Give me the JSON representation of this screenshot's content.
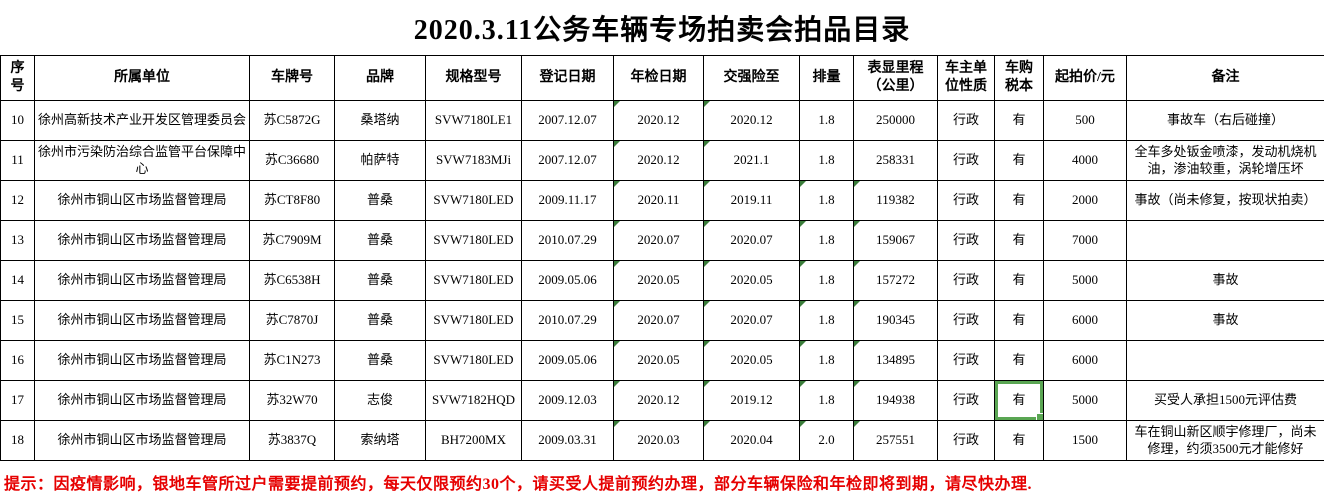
{
  "title": "2020.3.11公务车辆专场拍卖会拍品目录",
  "table": {
    "headers": {
      "no": "序号",
      "unit": "所属单位",
      "plate": "车牌号",
      "brand": "品牌",
      "model": "规格型号",
      "reg_date": "登记日期",
      "inspection": "年检日期",
      "insurance": "交强险至",
      "displacement": "排量",
      "mileage": "表显里程\n（公里）",
      "owner_type": "车主单\n位性质",
      "tax_book": "车购\n税本",
      "start_price": "起拍价/元",
      "remark": "备注"
    },
    "rows": [
      {
        "no": "10",
        "unit": "徐州高新技术产业开发区管理委员会",
        "plate": "苏C5872G",
        "brand": "桑塔纳",
        "model": "SVW7180LE1",
        "reg_date": "2007.12.07",
        "inspection": "2020.12",
        "insurance": "2020.12",
        "displacement": "1.8",
        "mileage": "250000",
        "owner_type": "行政",
        "tax_book": "有",
        "start_price": "500",
        "remark": "事故车（右后碰撞）",
        "flags": [
          "inspection",
          "insurance"
        ]
      },
      {
        "no": "11",
        "unit": "徐州市污染防治综合监管平台保障中心",
        "plate": "苏C36680",
        "brand": "帕萨特",
        "model": "SVW7183MJi",
        "reg_date": "2007.12.07",
        "inspection": "2020.12",
        "insurance": "2021.1",
        "displacement": "1.8",
        "mileage": "258331",
        "owner_type": "行政",
        "tax_book": "有",
        "start_price": "4000",
        "remark": "全车多处钣金喷漆，发动机烧机油，渗油较重，涡轮增压坏",
        "flags": [
          "inspection",
          "insurance"
        ]
      },
      {
        "no": "12",
        "unit": "徐州市铜山区市场监督管理局",
        "plate": "苏CT8F80",
        "brand": "普桑",
        "model": "SVW7180LED",
        "reg_date": "2009.11.17",
        "inspection": "2020.11",
        "insurance": "2019.11",
        "displacement": "1.8",
        "mileage": "119382",
        "owner_type": "行政",
        "tax_book": "有",
        "start_price": "2000",
        "remark": "事故（尚未修复，按现状拍卖）",
        "flags": [
          "inspection",
          "insurance",
          "displacement",
          "mileage"
        ]
      },
      {
        "no": "13",
        "unit": "徐州市铜山区市场监督管理局",
        "plate": "苏C7909M",
        "brand": "普桑",
        "model": "SVW7180LED",
        "reg_date": "2010.07.29",
        "inspection": "2020.07",
        "insurance": "2020.07",
        "displacement": "1.8",
        "mileage": "159067",
        "owner_type": "行政",
        "tax_book": "有",
        "start_price": "7000",
        "remark": "",
        "flags": [
          "inspection",
          "insurance",
          "displacement",
          "mileage"
        ]
      },
      {
        "no": "14",
        "unit": "徐州市铜山区市场监督管理局",
        "plate": "苏C6538H",
        "brand": "普桑",
        "model": "SVW7180LED",
        "reg_date": "2009.05.06",
        "inspection": "2020.05",
        "insurance": "2020.05",
        "displacement": "1.8",
        "mileage": "157272",
        "owner_type": "行政",
        "tax_book": "有",
        "start_price": "5000",
        "remark": "事故",
        "flags": [
          "inspection",
          "insurance",
          "displacement",
          "mileage"
        ]
      },
      {
        "no": "15",
        "unit": "徐州市铜山区市场监督管理局",
        "plate": "苏C7870J",
        "brand": "普桑",
        "model": "SVW7180LED",
        "reg_date": "2010.07.29",
        "inspection": "2020.07",
        "insurance": "2020.07",
        "displacement": "1.8",
        "mileage": "190345",
        "owner_type": "行政",
        "tax_book": "有",
        "start_price": "6000",
        "remark": "事故",
        "flags": [
          "inspection",
          "insurance",
          "displacement",
          "mileage"
        ]
      },
      {
        "no": "16",
        "unit": "徐州市铜山区市场监督管理局",
        "plate": "苏C1N273",
        "brand": "普桑",
        "model": "SVW7180LED",
        "reg_date": "2009.05.06",
        "inspection": "2020.05",
        "insurance": "2020.05",
        "displacement": "1.8",
        "mileage": "134895",
        "owner_type": "行政",
        "tax_book": "有",
        "start_price": "6000",
        "remark": "",
        "flags": [
          "inspection",
          "insurance",
          "displacement",
          "mileage"
        ]
      },
      {
        "no": "17",
        "unit": "徐州市铜山区市场监督管理局",
        "plate": "苏32W70",
        "brand": "志俊",
        "model": "SVW7182HQD",
        "reg_date": "2009.12.03",
        "inspection": "2020.12",
        "insurance": "2019.12",
        "displacement": "1.8",
        "mileage": "194938",
        "owner_type": "行政",
        "tax_book": "有",
        "start_price": "5000",
        "remark": "买受人承担1500元评估费",
        "flags": [
          "inspection",
          "insurance",
          "displacement",
          "mileage"
        ],
        "selected": "tax_book"
      },
      {
        "no": "18",
        "unit": "徐州市铜山区市场监督管理局",
        "plate": "苏3837Q",
        "brand": "索纳塔",
        "model": "BH7200MX",
        "reg_date": "2009.03.31",
        "inspection": "2020.03",
        "insurance": "2020.04",
        "displacement": "2.0",
        "mileage": "257551",
        "owner_type": "行政",
        "tax_book": "有",
        "start_price": "1500",
        "remark": "车在铜山新区顺宇修理厂，尚未修理，约须3500元才能修好",
        "flags": [
          "inspection",
          "insurance",
          "displacement",
          "mileage"
        ]
      }
    ]
  },
  "footer_note": "提示：因疫情影响，银地车管所过户需要提前预约，每天仅限预约30个，请买受人提前预约办理，部分车辆保险和年检即将到期，请尽快办理.",
  "colors": {
    "selection_green": "#5aa653",
    "flag_green": "#3a7d3a",
    "note_red": "#e60000",
    "grid_line": "#000000"
  }
}
